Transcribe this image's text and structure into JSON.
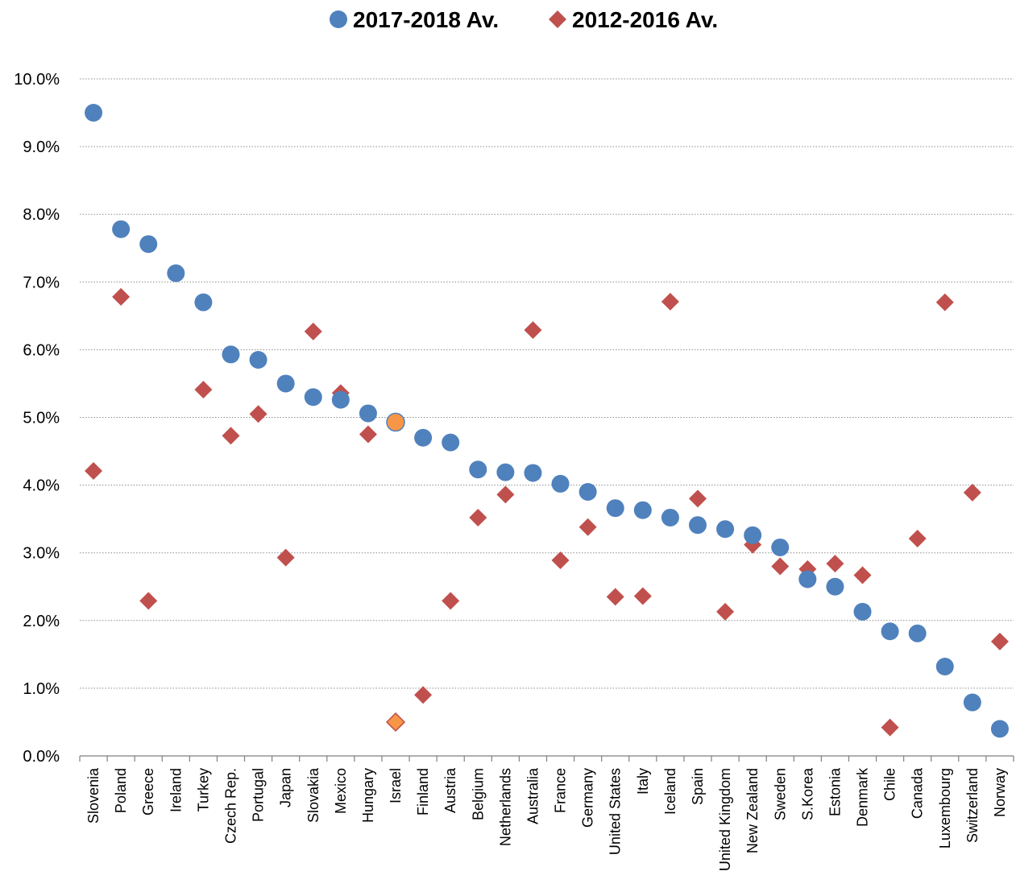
{
  "chart_data": {
    "type": "scatter",
    "legend_position": "top-center",
    "grid": "horizontal dotted",
    "ylim": [
      0,
      0.1
    ],
    "y_ticks": [
      "0.0%",
      "1.0%",
      "2.0%",
      "3.0%",
      "4.0%",
      "5.0%",
      "6.0%",
      "7.0%",
      "8.0%",
      "9.0%",
      "10.0%"
    ],
    "categories": [
      "Slovenia",
      "Poland",
      "Greece",
      "Ireland",
      "Turkey",
      "Czech Rep.",
      "Portugal",
      "Japan",
      "Slovakia",
      "Mexico",
      "Hungary",
      "Israel",
      "Finland",
      "Austria",
      "Belgium",
      "Netherlands",
      "Australia",
      "France",
      "Germany",
      "United States",
      "Italy",
      "Iceland",
      "Spain",
      "United Kingdom",
      "New Zealand",
      "Sweden",
      "S.Korea",
      "Estonia",
      "Denmark",
      "Chile",
      "Canada",
      "Luxembourg",
      "Switzerland",
      "Norway"
    ],
    "highlight_category": "Israel",
    "highlight_color": "#f79646",
    "series": [
      {
        "name": "2017-2018 Av.",
        "marker": "circle",
        "color": "#4f81bd",
        "values": [
          0.095,
          0.0778,
          0.0756,
          0.0713,
          0.067,
          0.0593,
          0.0585,
          0.055,
          0.053,
          0.0526,
          0.0506,
          0.0493,
          0.047,
          0.0463,
          0.0423,
          0.0419,
          0.0418,
          0.0402,
          0.039,
          0.0366,
          0.0363,
          0.0352,
          0.0341,
          0.0335,
          0.0326,
          0.0308,
          0.0261,
          0.025,
          0.0213,
          0.0184,
          0.0181,
          0.0132,
          0.0079,
          0.004
        ]
      },
      {
        "name": "2012-2016 Av.",
        "marker": "diamond",
        "color": "#c0504d",
        "values": [
          0.0421,
          0.0678,
          0.0229,
          null,
          0.0541,
          0.0473,
          0.0505,
          0.0293,
          0.0627,
          0.0536,
          0.0475,
          0.005,
          0.009,
          0.0229,
          0.0352,
          0.0386,
          0.0629,
          0.0289,
          0.0338,
          0.0235,
          0.0236,
          0.0671,
          0.038,
          0.0213,
          0.0312,
          0.028,
          0.0276,
          0.0284,
          0.0267,
          0.0042,
          0.0321,
          0.067,
          0.0389,
          0.0169
        ]
      }
    ]
  }
}
